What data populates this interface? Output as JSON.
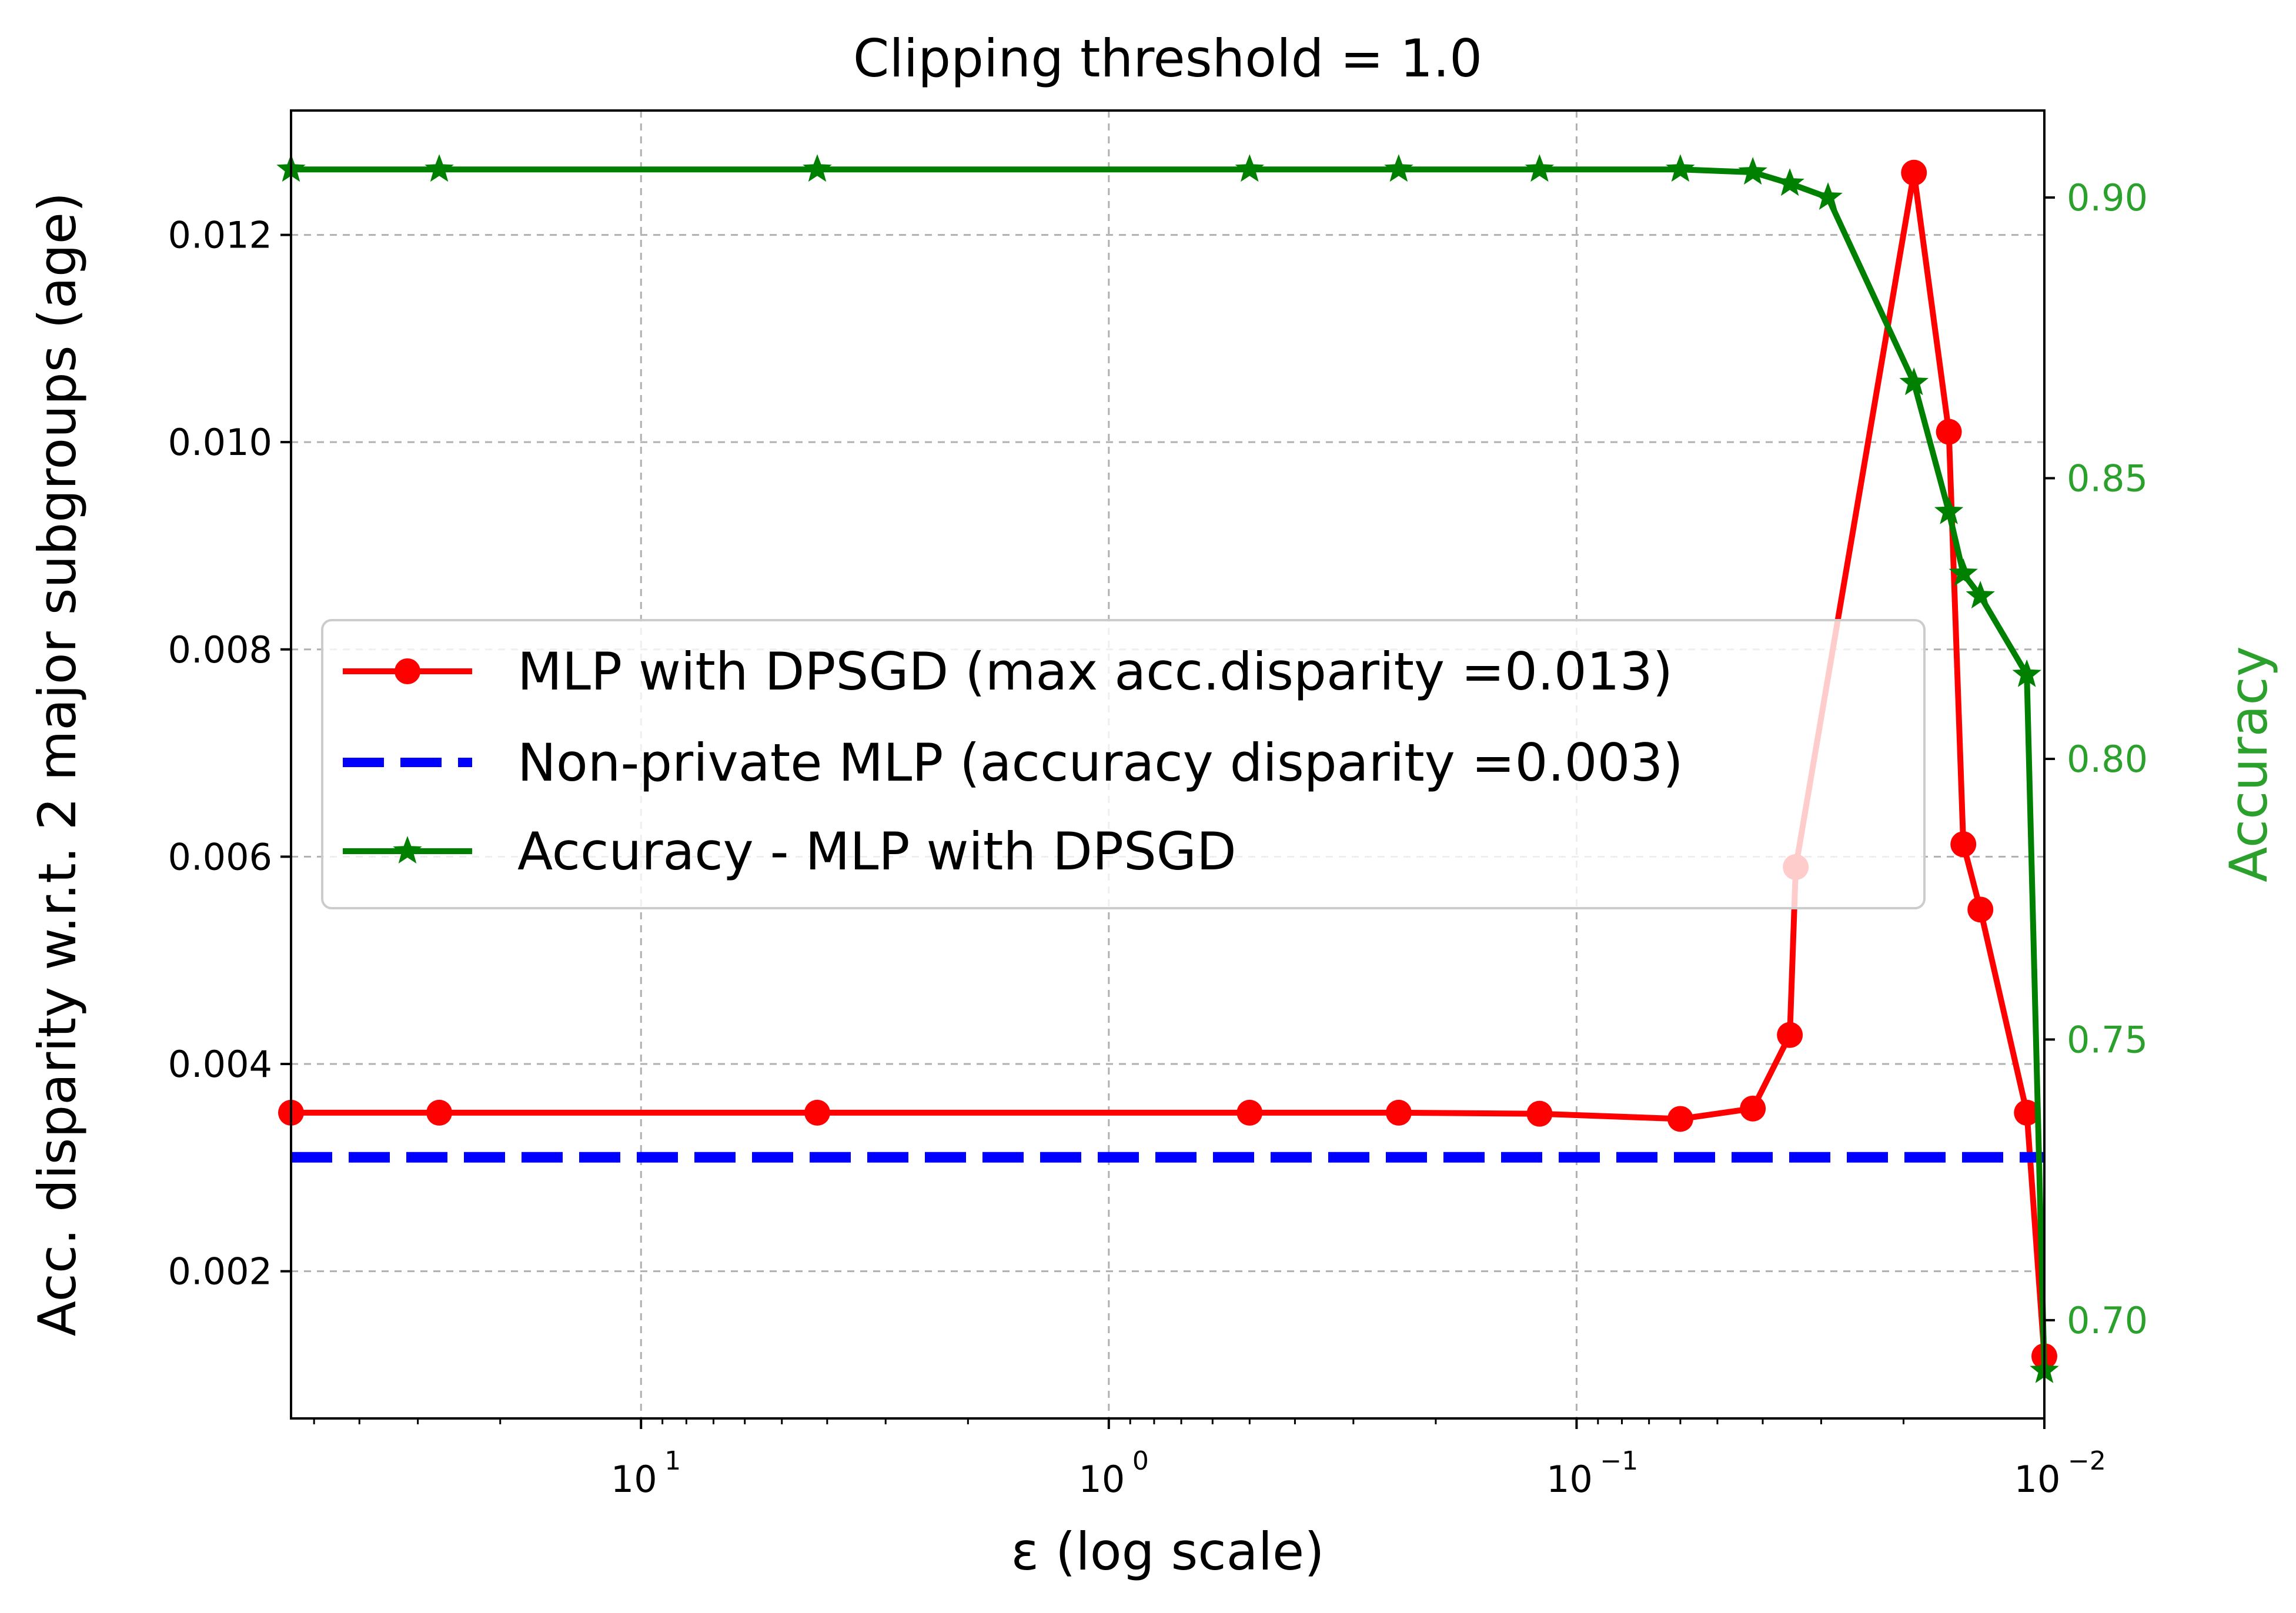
{
  "chart_data": {
    "type": "line",
    "title": "Clipping threshold = 1.0",
    "xlabel": "ε (log scale)",
    "ylabel_left": "Acc. disparity w.r.t. 2 major subgroups (age)",
    "ylabel_right": "Accuracy",
    "x_scale": "log",
    "x_reversed": true,
    "xlim": [
      56,
      0.01
    ],
    "ylim_left": [
      0.00058,
      0.0132
    ],
    "ylim_right": [
      0.6825,
      0.9155
    ],
    "x_ticks": [
      {
        "value": 10,
        "base": "10",
        "exp": "1"
      },
      {
        "value": 1,
        "base": "10",
        "exp": "0"
      },
      {
        "value": 0.1,
        "base": "10",
        "exp": "−1"
      },
      {
        "value": 0.01,
        "base": "10",
        "exp": "−2"
      }
    ],
    "y_left_ticks": [
      "0.002",
      "0.004",
      "0.006",
      "0.008",
      "0.010",
      "0.012"
    ],
    "y_right_ticks": [
      "0.70",
      "0.75",
      "0.80",
      "0.85",
      "0.90"
    ],
    "grid": true,
    "legend_position": "center-left",
    "colors": {
      "disparity": "#ff0000",
      "nonprivate": "#0000ff",
      "accuracy": "#008000",
      "right_axis": "#2ca02c",
      "grid": "#b0b0b0"
    },
    "series": [
      {
        "name": "MLP with DPSGD (max acc.disparity =0.013)",
        "axis": "left",
        "marker": "circle",
        "x": [
          56,
          27,
          4.2,
          0.5,
          0.24,
          0.12,
          0.06,
          0.042,
          0.035,
          0.034,
          0.029,
          0.019,
          0.016,
          0.0149,
          0.0137,
          0.0109,
          0.01
        ],
        "values": [
          0.00353,
          0.00353,
          0.00353,
          0.00353,
          0.00353,
          0.00352,
          0.00347,
          0.00357,
          0.00428,
          0.0059,
          null,
          0.0126,
          0.0101,
          0.00612,
          0.00549,
          0.00353,
          0.00118
        ]
      },
      {
        "name": "Non-private MLP (accuracy disparity =0.003)",
        "axis": "left",
        "style": "dashed",
        "x": [
          56,
          0.01
        ],
        "values": [
          0.0031,
          0.0031
        ]
      },
      {
        "name": "Accuracy - MLP with DPSGD",
        "axis": "right",
        "marker": "star",
        "x": [
          56,
          27,
          4.2,
          0.5,
          0.24,
          0.12,
          0.06,
          0.042,
          0.035,
          0.034,
          0.029,
          0.019,
          0.016,
          0.0149,
          0.0137,
          0.0109,
          0.01
        ],
        "values": [
          0.905,
          0.905,
          0.905,
          0.905,
          0.905,
          0.905,
          0.905,
          0.9045,
          0.9025,
          null,
          0.9,
          0.867,
          0.844,
          0.833,
          0.829,
          0.815,
          0.691
        ]
      }
    ]
  }
}
